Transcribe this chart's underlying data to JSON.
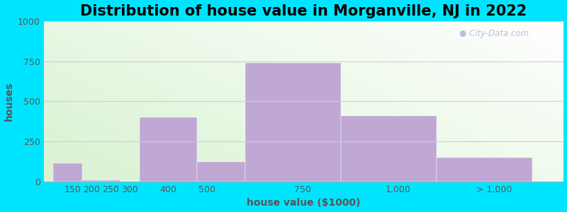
{
  "title": "Distribution of house value in Morganville, NJ in 2022",
  "xlabel": "house value ($1000)",
  "ylabel": "houses",
  "bar_heights": [
    115,
    10,
    10,
    0,
    400,
    125,
    740,
    410,
    150
  ],
  "bar_lefts": [
    100,
    175,
    225,
    275,
    325,
    475,
    600,
    850,
    1100
  ],
  "bar_widths": [
    75,
    50,
    50,
    50,
    150,
    125,
    250,
    250,
    250
  ],
  "bar_color": "#c0a8d5",
  "bar_edge_color": "#c0a8d5",
  "tick_positions": [
    150,
    200,
    250,
    300,
    400,
    500,
    750,
    1000,
    1250
  ],
  "tick_labels": [
    "150",
    "200",
    "250",
    "300",
    "400",
    "500",
    "750",
    "1,000",
    "> 1,000"
  ],
  "ylim": [
    0,
    1000
  ],
  "yticks": [
    0,
    250,
    500,
    750,
    1000
  ],
  "bg_outer": "#00e5ff",
  "grid_color": "#d8c8e0",
  "title_fontsize": 15,
  "label_fontsize": 10,
  "tick_fontsize": 9,
  "text_color": "#555555",
  "xlim_left": 75,
  "xlim_right": 1430
}
